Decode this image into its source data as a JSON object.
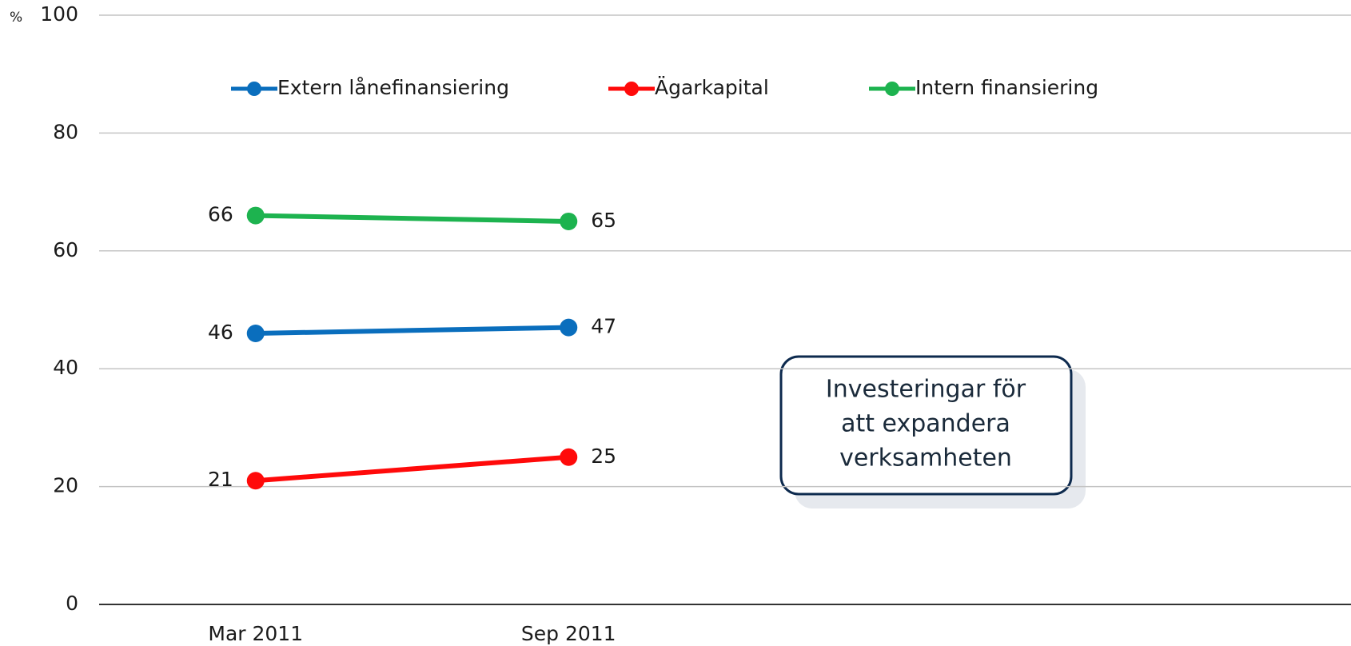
{
  "chart_data": {
    "type": "line",
    "y_label": "%",
    "categories": [
      "Mar 2011",
      "Sep 2011",
      null,
      null
    ],
    "series": [
      {
        "name": "Extern lånefinansiering",
        "color": "#0a6ebd",
        "values": [
          46,
          47,
          null,
          null
        ]
      },
      {
        "name": "Ägarkapital",
        "color": "#ff0a0a",
        "values": [
          21,
          25,
          null,
          null
        ]
      },
      {
        "name": "Intern finansiering",
        "color": "#1db34f",
        "values": [
          66,
          65,
          null,
          null
        ]
      }
    ],
    "ylim": [
      0,
      100
    ],
    "yticks": [
      0,
      20,
      40,
      60,
      80,
      100
    ],
    "grid": true,
    "legend": "top",
    "annotation": [
      "Investeringar för",
      "att expandera",
      "verksamheten"
    ]
  }
}
